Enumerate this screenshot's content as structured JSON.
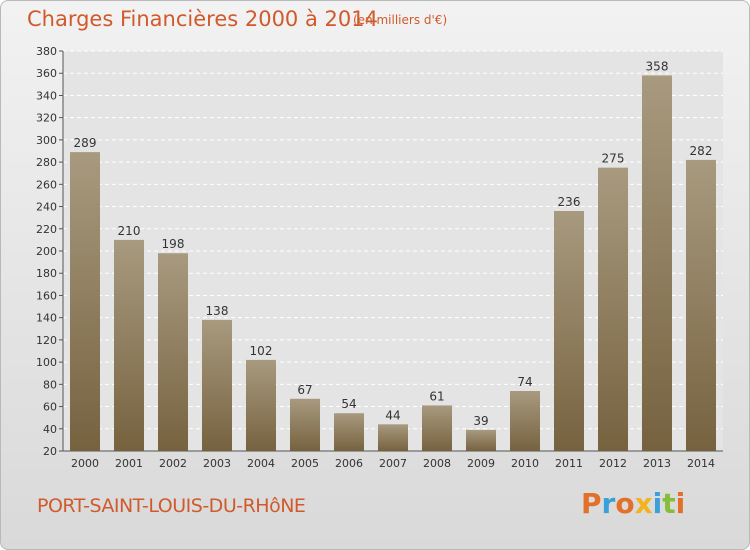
{
  "header": {
    "title": "Charges Financières 2000 à 2014",
    "unit": "(en milliers d'€)"
  },
  "footer": {
    "place": "PORT-SAINT-LOUIS-DU-RHôNE",
    "logo": "Proxiti"
  },
  "colors": {
    "title": "#d05a2c",
    "bar_top": "#a89a7f",
    "bar_bottom": "#76623f",
    "plot_bg": "#e4e4e4",
    "logo_letters": [
      "#e2702a",
      "#3aa0d8",
      "#e2702a",
      "#f2b31c",
      "#3aa0d8",
      "#86bd3a",
      "#e2702a"
    ]
  },
  "chart_data": {
    "type": "bar",
    "categories": [
      "2000",
      "2001",
      "2002",
      "2003",
      "2004",
      "2005",
      "2006",
      "2007",
      "2008",
      "2009",
      "2010",
      "2011",
      "2012",
      "2013",
      "2014"
    ],
    "values": [
      289,
      210,
      198,
      138,
      102,
      67,
      54,
      44,
      61,
      39,
      74,
      236,
      275,
      358,
      282
    ],
    "data_labels": [
      "289",
      "210",
      "198",
      "138",
      "102",
      "67",
      "54",
      "44",
      "61",
      "39",
      "74",
      "236",
      "275",
      "358",
      "282"
    ],
    "yticks": [
      "20",
      "40",
      "60",
      "80",
      "100",
      "120",
      "140",
      "160",
      "180",
      "200",
      "220",
      "240",
      "260",
      "280",
      "300",
      "320",
      "340",
      "360",
      "380"
    ],
    "ylim": [
      20,
      380
    ],
    "grid": true,
    "legend": "none"
  }
}
